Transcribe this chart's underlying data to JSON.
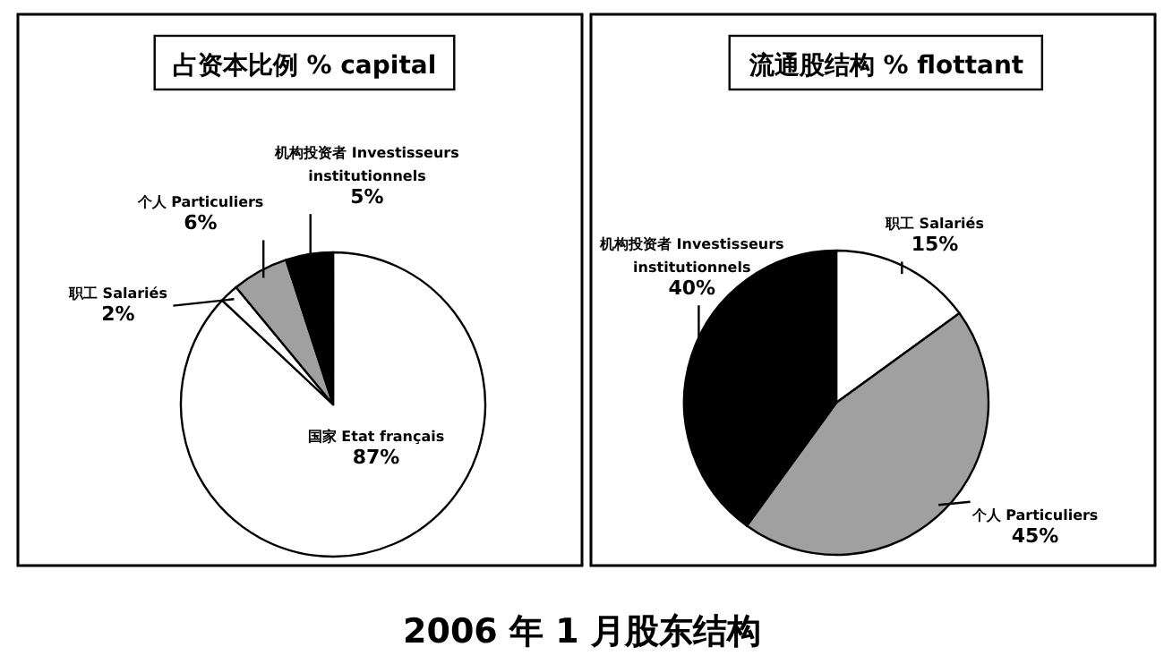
{
  "chart_data": [
    {
      "type": "pie",
      "title": "占资本比例  % capital",
      "categories": [
        "国家 Etat français",
        "职工 Salariés",
        "个人 Particuliers",
        "机构投资者 Investisseurs institutionnels"
      ],
      "values": [
        87,
        2,
        6,
        5
      ],
      "colors": [
        "#ffffff",
        "#ffffff",
        "#a0a0a0",
        "#000000"
      ],
      "value_labels": [
        "87%",
        "2%",
        "6%",
        "5%"
      ],
      "annotations": [
        "2006 年 1 月股东结构"
      ]
    },
    {
      "type": "pie",
      "title": "流通股结构  % flottant",
      "categories": [
        "职工 Salariés",
        "个人 Particuliers",
        "机构投资者 Investisseurs institutionnels"
      ],
      "values": [
        15,
        45,
        40
      ],
      "colors": [
        "#ffffff",
        "#a0a0a0",
        "#000000"
      ],
      "value_labels": [
        "15%",
        "45%",
        "40%"
      ]
    }
  ]
}
